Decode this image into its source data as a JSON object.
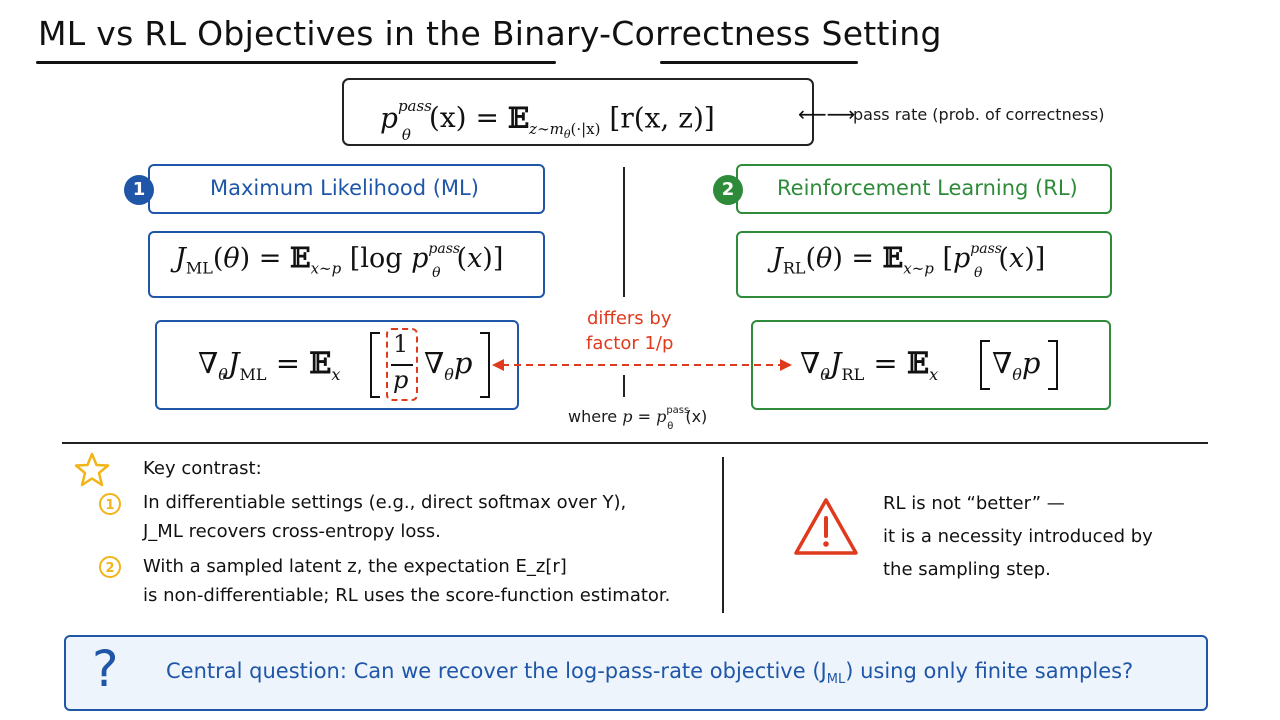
{
  "title": "ML vs RL Objectives in the Binary-Correctness Setting",
  "pass_rate": {
    "formula_lhs_p": "p",
    "formula_sup": "pass",
    "formula_sub": "θ",
    "formula_arg": "(x) = ",
    "formula_E": "𝔼",
    "formula_E_sub": "z∼m",
    "formula_E_sub2": "θ",
    "formula_E_sub3": "(·|x)",
    "formula_body": " [r(x, z)]",
    "arrow": "⟵⟶",
    "note": "pass rate (prob. of correctness)"
  },
  "ml": {
    "number": "1",
    "header": "Maximum Likelihood (ML)",
    "objective": "J_ML(θ) = E_x∼p [log p^pass_θ(x)]",
    "gradient": "∇θ J_ML = E_x [ (1/p) ∇θ p ]"
  },
  "rl": {
    "number": "2",
    "header": "Reinforcement Learning (RL)",
    "objective": "J_RL(θ) = E_x∼p [p^pass_θ(x)]",
    "gradient": "∇θ J_RL = E_x [ ∇θ p ]"
  },
  "differs": {
    "line1": "differs by",
    "line2": "factor 1/p"
  },
  "where_note": "where p = p^pass_θ(x)",
  "key_contrast": {
    "title": "Key contrast:",
    "items": [
      {
        "number": "1",
        "line1": "In differentiable settings (e.g., direct softmax over Y),",
        "line2": "J_ML recovers cross-entropy loss."
      },
      {
        "number": "2",
        "line1": "With a sampled latent z, the expectation E_z[r]",
        "line2": "is non-differentiable; RL uses the score-function estimator."
      }
    ]
  },
  "warning": {
    "line1": "RL is not “better” —",
    "line2": "it is a necessity introduced by",
    "line3": "the sampling step."
  },
  "central": {
    "icon": "?",
    "text_before": "Central question: Can we recover the log-pass-rate objective (",
    "text_j": "J",
    "text_sub": "ML",
    "text_after": ") using only finite samples?"
  },
  "colors": {
    "blue": "#1f56a8",
    "green": "#2e8b3a",
    "red": "#e03a1e",
    "gold": "#f2b417",
    "central_bg": "#eef4fb",
    "central_border": "#1f56a8"
  }
}
